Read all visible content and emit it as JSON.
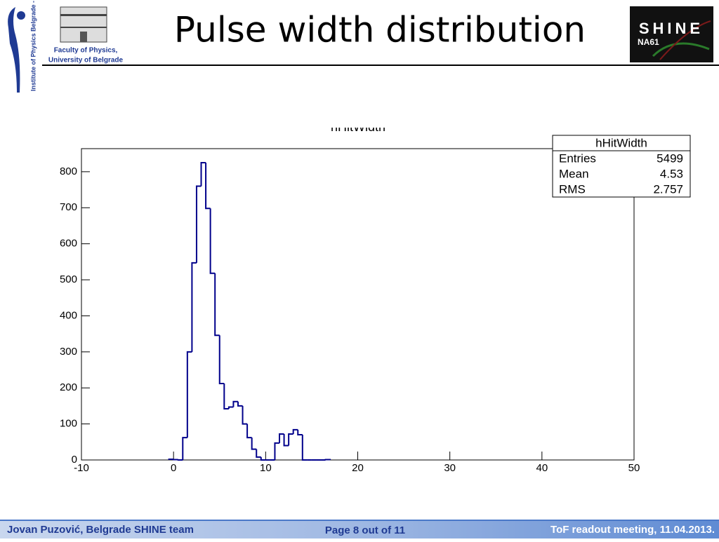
{
  "header": {
    "title": "Pulse width distribution",
    "institute": "Institute of Physics Belgrade - Serbia",
    "faculty_line1": "Faculty of Physics,",
    "faculty_line2": "University of Belgrade",
    "logo_main": "SHINE",
    "logo_sub": "NA61"
  },
  "chart_data": {
    "type": "histogram",
    "title": "hHitWidth",
    "color": "#00008b",
    "bins": [
      -0.5,
      0,
      0.5,
      1,
      1.5,
      2,
      2.5,
      3,
      3.5,
      4,
      4.5,
      5,
      5.5,
      6,
      6.5,
      7,
      7.5,
      8,
      8.5,
      9,
      9.5,
      10,
      10.5,
      11,
      11.5,
      12,
      12.5,
      13,
      13.5,
      14,
      14.5,
      15,
      15.5,
      16,
      16.5,
      17
    ],
    "values": [
      2,
      1,
      0,
      62,
      300,
      547,
      760,
      825,
      698,
      518,
      346,
      212,
      142,
      147,
      162,
      150,
      100,
      62,
      30,
      8,
      0,
      0,
      0,
      47,
      72,
      40,
      72,
      84,
      70,
      0,
      0,
      0,
      0,
      0,
      1
    ],
    "xlim": [
      -10,
      50
    ],
    "xticks": [
      -10,
      0,
      10,
      20,
      30,
      40,
      50
    ],
    "ylim": [
      0,
      864
    ],
    "yticks": [
      0,
      100,
      200,
      300,
      400,
      500,
      600,
      700,
      800
    ],
    "grid": false,
    "stats": {
      "title": "hHitWidth",
      "rows": [
        [
          "Entries",
          "5499"
        ],
        [
          "Mean",
          "4.53"
        ],
        [
          "RMS",
          "2.757"
        ]
      ]
    }
  },
  "footer": {
    "author": "Jovan Puzović, Belgrade SHINE team",
    "page": "Page 8 out of 11",
    "meeting": "ToF readout meeting, 11.04.2013."
  }
}
